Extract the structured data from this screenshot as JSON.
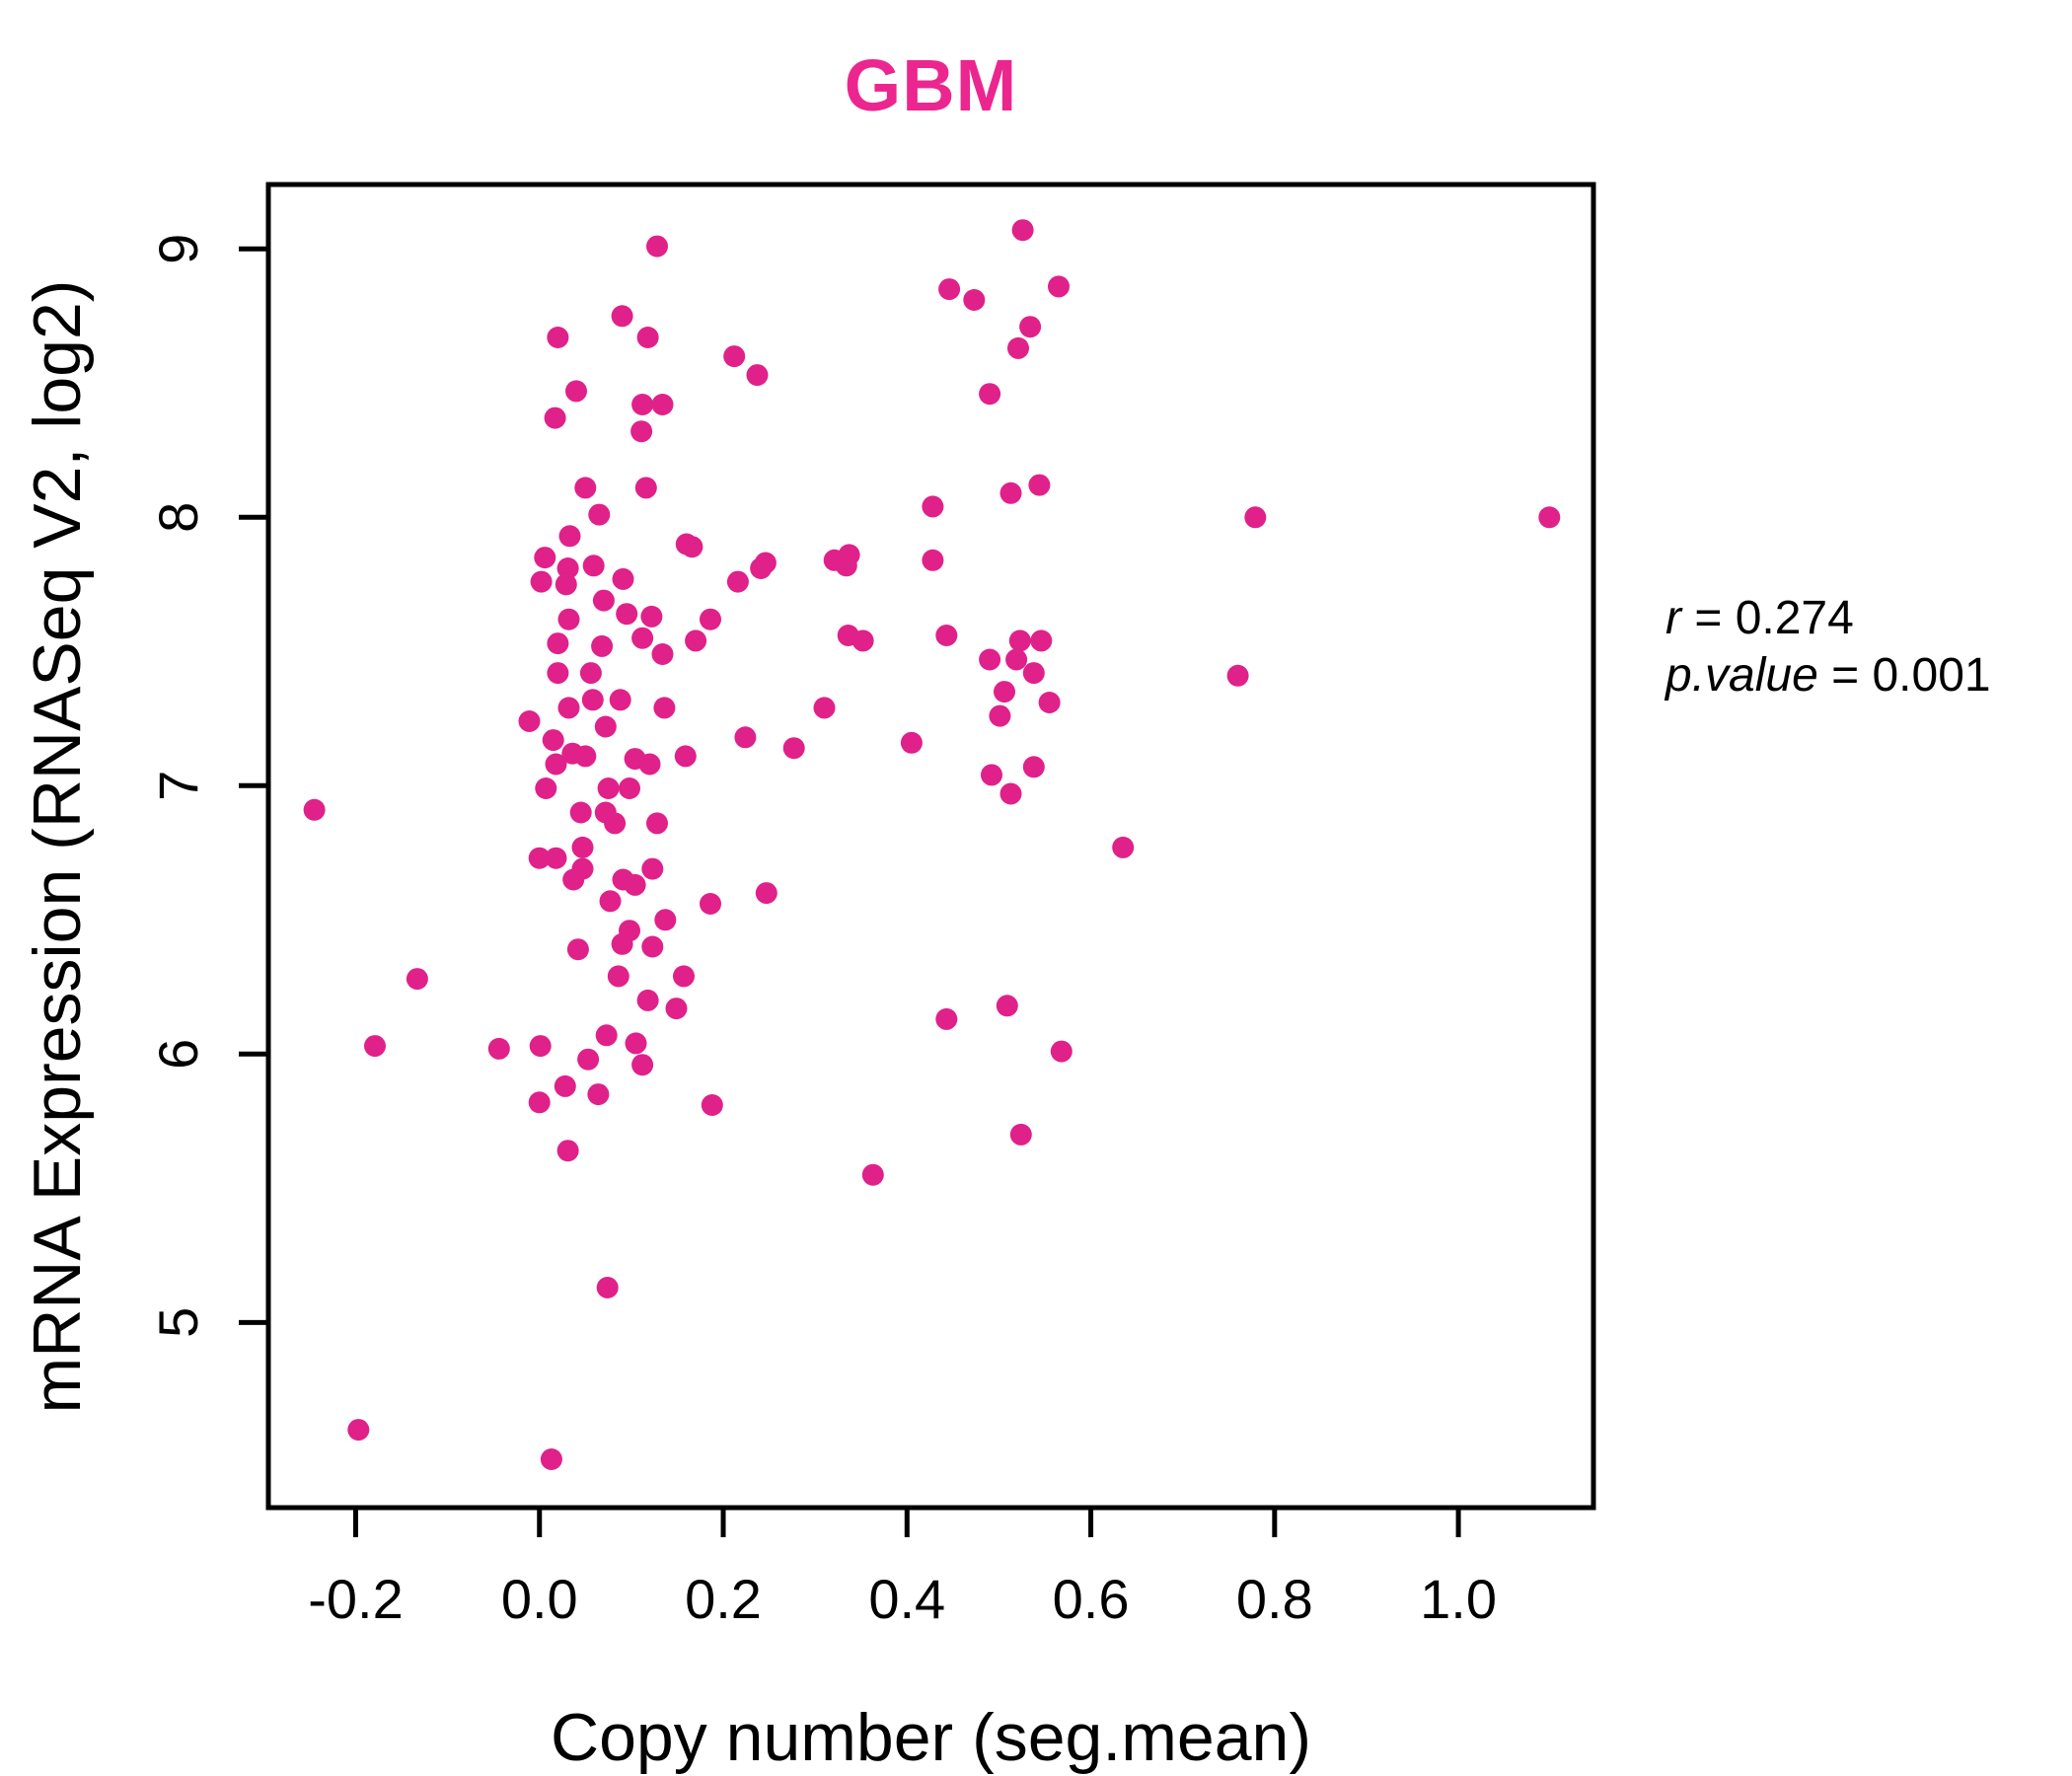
{
  "chart_data": {
    "type": "scatter",
    "title": "GBM",
    "title_color": "#EC268F",
    "xlabel": "Copy number (seg.mean)",
    "ylabel": "mRNA Expression (RNASeq V2, log2)",
    "annotation": {
      "line1_var": "r",
      "line1_rest": " = 0.274",
      "line2_var": "p.value",
      "line2_rest": " = 0.001"
    },
    "point_color": "#E0218A",
    "axis_color": "#000000",
    "grid": false,
    "legend": "none",
    "xlim": [
      -0.295,
      1.147
    ],
    "ylim": [
      4.31,
      9.24
    ],
    "x_ticks": [
      -0.2,
      0.0,
      0.2,
      0.4,
      0.6,
      0.8,
      1.0
    ],
    "x_tick_labels": [
      "-0.2",
      "0.0",
      "0.2",
      "0.4",
      "0.6",
      "0.8",
      "1.0"
    ],
    "y_ticks": [
      5,
      6,
      7,
      8,
      9
    ],
    "y_tick_labels": [
      "5",
      "6",
      "7",
      "8",
      "9"
    ],
    "points": [
      [
        0.128,
        9.01
      ],
      [
        0.09,
        8.75
      ],
      [
        0.02,
        8.67
      ],
      [
        0.118,
        8.67
      ],
      [
        0.212,
        8.6
      ],
      [
        0.237,
        8.53
      ],
      [
        0.04,
        8.47
      ],
      [
        0.112,
        8.42
      ],
      [
        0.134,
        8.42
      ],
      [
        0.017,
        8.37
      ],
      [
        0.111,
        8.32
      ],
      [
        0.05,
        8.11
      ],
      [
        0.116,
        8.11
      ],
      [
        0.065,
        8.01
      ],
      [
        0.166,
        7.89
      ],
      [
        0.246,
        7.83
      ],
      [
        0.337,
        7.86
      ],
      [
        0.526,
        9.07
      ],
      [
        0.446,
        8.85
      ],
      [
        0.473,
        8.81
      ],
      [
        0.565,
        8.86
      ],
      [
        0.534,
        8.71
      ],
      [
        0.521,
        8.63
      ],
      [
        0.49,
        8.46
      ],
      [
        0.513,
        8.09
      ],
      [
        0.544,
        8.12
      ],
      [
        0.428,
        8.04
      ],
      [
        0.779,
        8.0
      ],
      [
        1.099,
        8.0
      ],
      [
        0.033,
        7.93
      ],
      [
        0.006,
        7.85
      ],
      [
        0.059,
        7.82
      ],
      [
        0.031,
        7.81
      ],
      [
        0.002,
        7.76
      ],
      [
        0.029,
        7.75
      ],
      [
        0.091,
        7.77
      ],
      [
        0.07,
        7.69
      ],
      [
        0.095,
        7.64
      ],
      [
        0.032,
        7.62
      ],
      [
        0.122,
        7.63
      ],
      [
        0.068,
        7.52
      ],
      [
        0.112,
        7.55
      ],
      [
        0.02,
        7.53
      ],
      [
        0.134,
        7.49
      ],
      [
        0.17,
        7.54
      ],
      [
        0.16,
        7.9
      ],
      [
        0.216,
        7.76
      ],
      [
        0.241,
        7.81
      ],
      [
        0.321,
        7.84
      ],
      [
        0.334,
        7.82
      ],
      [
        0.428,
        7.84
      ],
      [
        0.186,
        7.62
      ],
      [
        0.336,
        7.56
      ],
      [
        0.352,
        7.54
      ],
      [
        0.443,
        7.56
      ],
      [
        0.136,
        7.29
      ],
      [
        0.088,
        7.32
      ],
      [
        0.058,
        7.32
      ],
      [
        0.032,
        7.29
      ],
      [
        0.02,
        7.42
      ],
      [
        0.056,
        7.42
      ],
      [
        -0.011,
        7.24
      ],
      [
        0.015,
        7.17
      ],
      [
        0.036,
        7.12
      ],
      [
        0.072,
        7.22
      ],
      [
        0.018,
        7.08
      ],
      [
        0.05,
        7.11
      ],
      [
        0.104,
        7.1
      ],
      [
        0.12,
        7.08
      ],
      [
        0.159,
        7.11
      ],
      [
        0.224,
        7.18
      ],
      [
        0.277,
        7.14
      ],
      [
        0.31,
        7.29
      ],
      [
        0.405,
        7.16
      ],
      [
        0.007,
        6.99
      ],
      [
        0.075,
        6.99
      ],
      [
        0.098,
        6.99
      ],
      [
        0.072,
        6.9
      ],
      [
        0.045,
        6.9
      ],
      [
        0.082,
        6.86
      ],
      [
        0.128,
        6.86
      ],
      [
        0.047,
        6.77
      ],
      [
        0.0,
        6.73
      ],
      [
        0.018,
        6.73
      ],
      [
        0.047,
        6.69
      ],
      [
        0.037,
        6.65
      ],
      [
        0.091,
        6.65
      ],
      [
        0.104,
        6.63
      ],
      [
        0.123,
        6.69
      ],
      [
        0.077,
        6.57
      ],
      [
        0.186,
        6.56
      ],
      [
        0.247,
        6.6
      ],
      [
        0.137,
        6.5
      ],
      [
        0.098,
        6.46
      ],
      [
        0.09,
        6.41
      ],
      [
        0.042,
        6.39
      ],
      [
        0.123,
        6.4
      ],
      [
        0.086,
        6.29
      ],
      [
        0.157,
        6.29
      ],
      [
        0.118,
        6.2
      ],
      [
        0.149,
        6.17
      ],
      [
        0.523,
        7.54
      ],
      [
        0.546,
        7.54
      ],
      [
        0.49,
        7.47
      ],
      [
        0.519,
        7.47
      ],
      [
        0.538,
        7.42
      ],
      [
        0.506,
        7.35
      ],
      [
        0.555,
        7.31
      ],
      [
        0.501,
        7.26
      ],
      [
        0.76,
        7.41
      ],
      [
        0.492,
        7.04
      ],
      [
        0.538,
        7.07
      ],
      [
        0.513,
        6.97
      ],
      [
        0.635,
        6.77
      ],
      [
        0.443,
        6.13
      ],
      [
        0.509,
        6.18
      ],
      [
        0.568,
        6.01
      ],
      [
        0.524,
        5.7
      ],
      [
        0.073,
        6.07
      ],
      [
        0.105,
        6.04
      ],
      [
        0.053,
        5.98
      ],
      [
        0.112,
        5.96
      ],
      [
        0.028,
        5.88
      ],
      [
        0.064,
        5.85
      ],
      [
        0.0,
        5.82
      ],
      [
        0.188,
        5.81
      ],
      [
        0.031,
        5.64
      ],
      [
        0.363,
        5.55
      ],
      [
        0.074,
        5.13
      ],
      [
        -0.197,
        4.6
      ],
      [
        0.013,
        4.49
      ],
      [
        -0.245,
        6.91
      ],
      [
        -0.133,
        6.28
      ],
      [
        -0.179,
        6.03
      ],
      [
        -0.044,
        6.02
      ],
      [
        0.001,
        6.03
      ]
    ]
  }
}
